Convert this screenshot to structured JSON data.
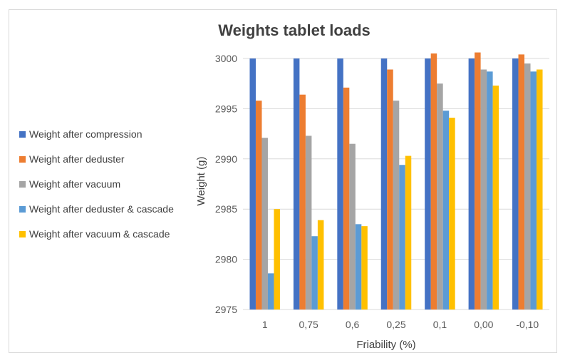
{
  "chart_data": {
    "type": "bar",
    "title": "Weights tablet loads",
    "xlabel": "Friability (%)",
    "ylabel": "Weight (g)",
    "ylim": [
      2975,
      3000
    ],
    "yticks": [
      2975,
      2980,
      2985,
      2990,
      2995,
      3000
    ],
    "grid": "horizontal",
    "legend_position": "left",
    "categories": [
      "1",
      "0,75",
      "0,6",
      "0,25",
      "0,1",
      "0,00",
      "-0,10"
    ],
    "series": [
      {
        "name": "Weight after compression",
        "color": "#4472C4",
        "values": [
          3000,
          3000,
          3000,
          3000,
          3000,
          3000,
          3000
        ]
      },
      {
        "name": "Weight after deduster",
        "color": "#ED7D31",
        "values": [
          2995.8,
          2996.4,
          2997.1,
          2998.9,
          3000.5,
          3000.6,
          3000.4
        ]
      },
      {
        "name": "Weight after vacuum",
        "color": "#A5A5A5",
        "values": [
          2992.1,
          2992.3,
          2991.5,
          2995.8,
          2997.5,
          2998.9,
          2999.5
        ]
      },
      {
        "name": "Weight after deduster & cascade",
        "color": "#5B9BD5",
        "values": [
          2978.6,
          2982.3,
          2983.5,
          2989.4,
          2994.8,
          2998.7,
          2998.7
        ]
      },
      {
        "name": "Weight after vacuum & cascade",
        "color": "#FFC000",
        "values": [
          2985.0,
          2983.9,
          2983.3,
          2990.3,
          2994.1,
          2997.3,
          2998.9
        ]
      }
    ]
  }
}
